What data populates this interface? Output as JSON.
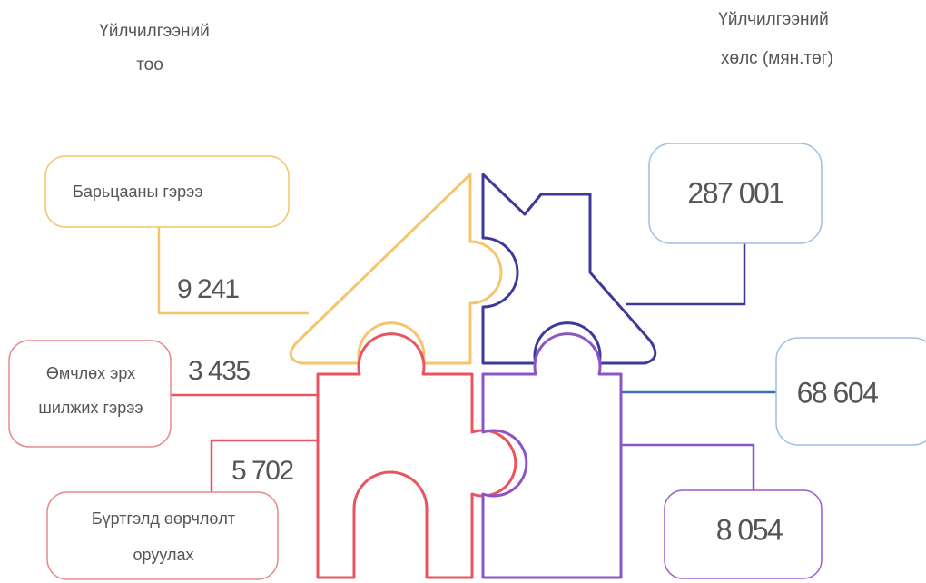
{
  "headers": {
    "left": [
      "Үйлчилгээний",
      "тоо"
    ],
    "right": [
      "Үйлчилгээний",
      "хөлс (мян.төг)"
    ]
  },
  "left_items": [
    {
      "lines": [
        "Барьцааны гэрээ"
      ],
      "count": "9 241"
    },
    {
      "lines": [
        "Өмчлөх эрх",
        "шилжих гэрээ"
      ],
      "count": "3 435"
    },
    {
      "lines": [
        "Бүртгэлд  өөрчлөлт",
        "оруулах"
      ],
      "count": "5 702"
    }
  ],
  "right_items": [
    "287 001",
    "68 604",
    "8 054"
  ]
}
